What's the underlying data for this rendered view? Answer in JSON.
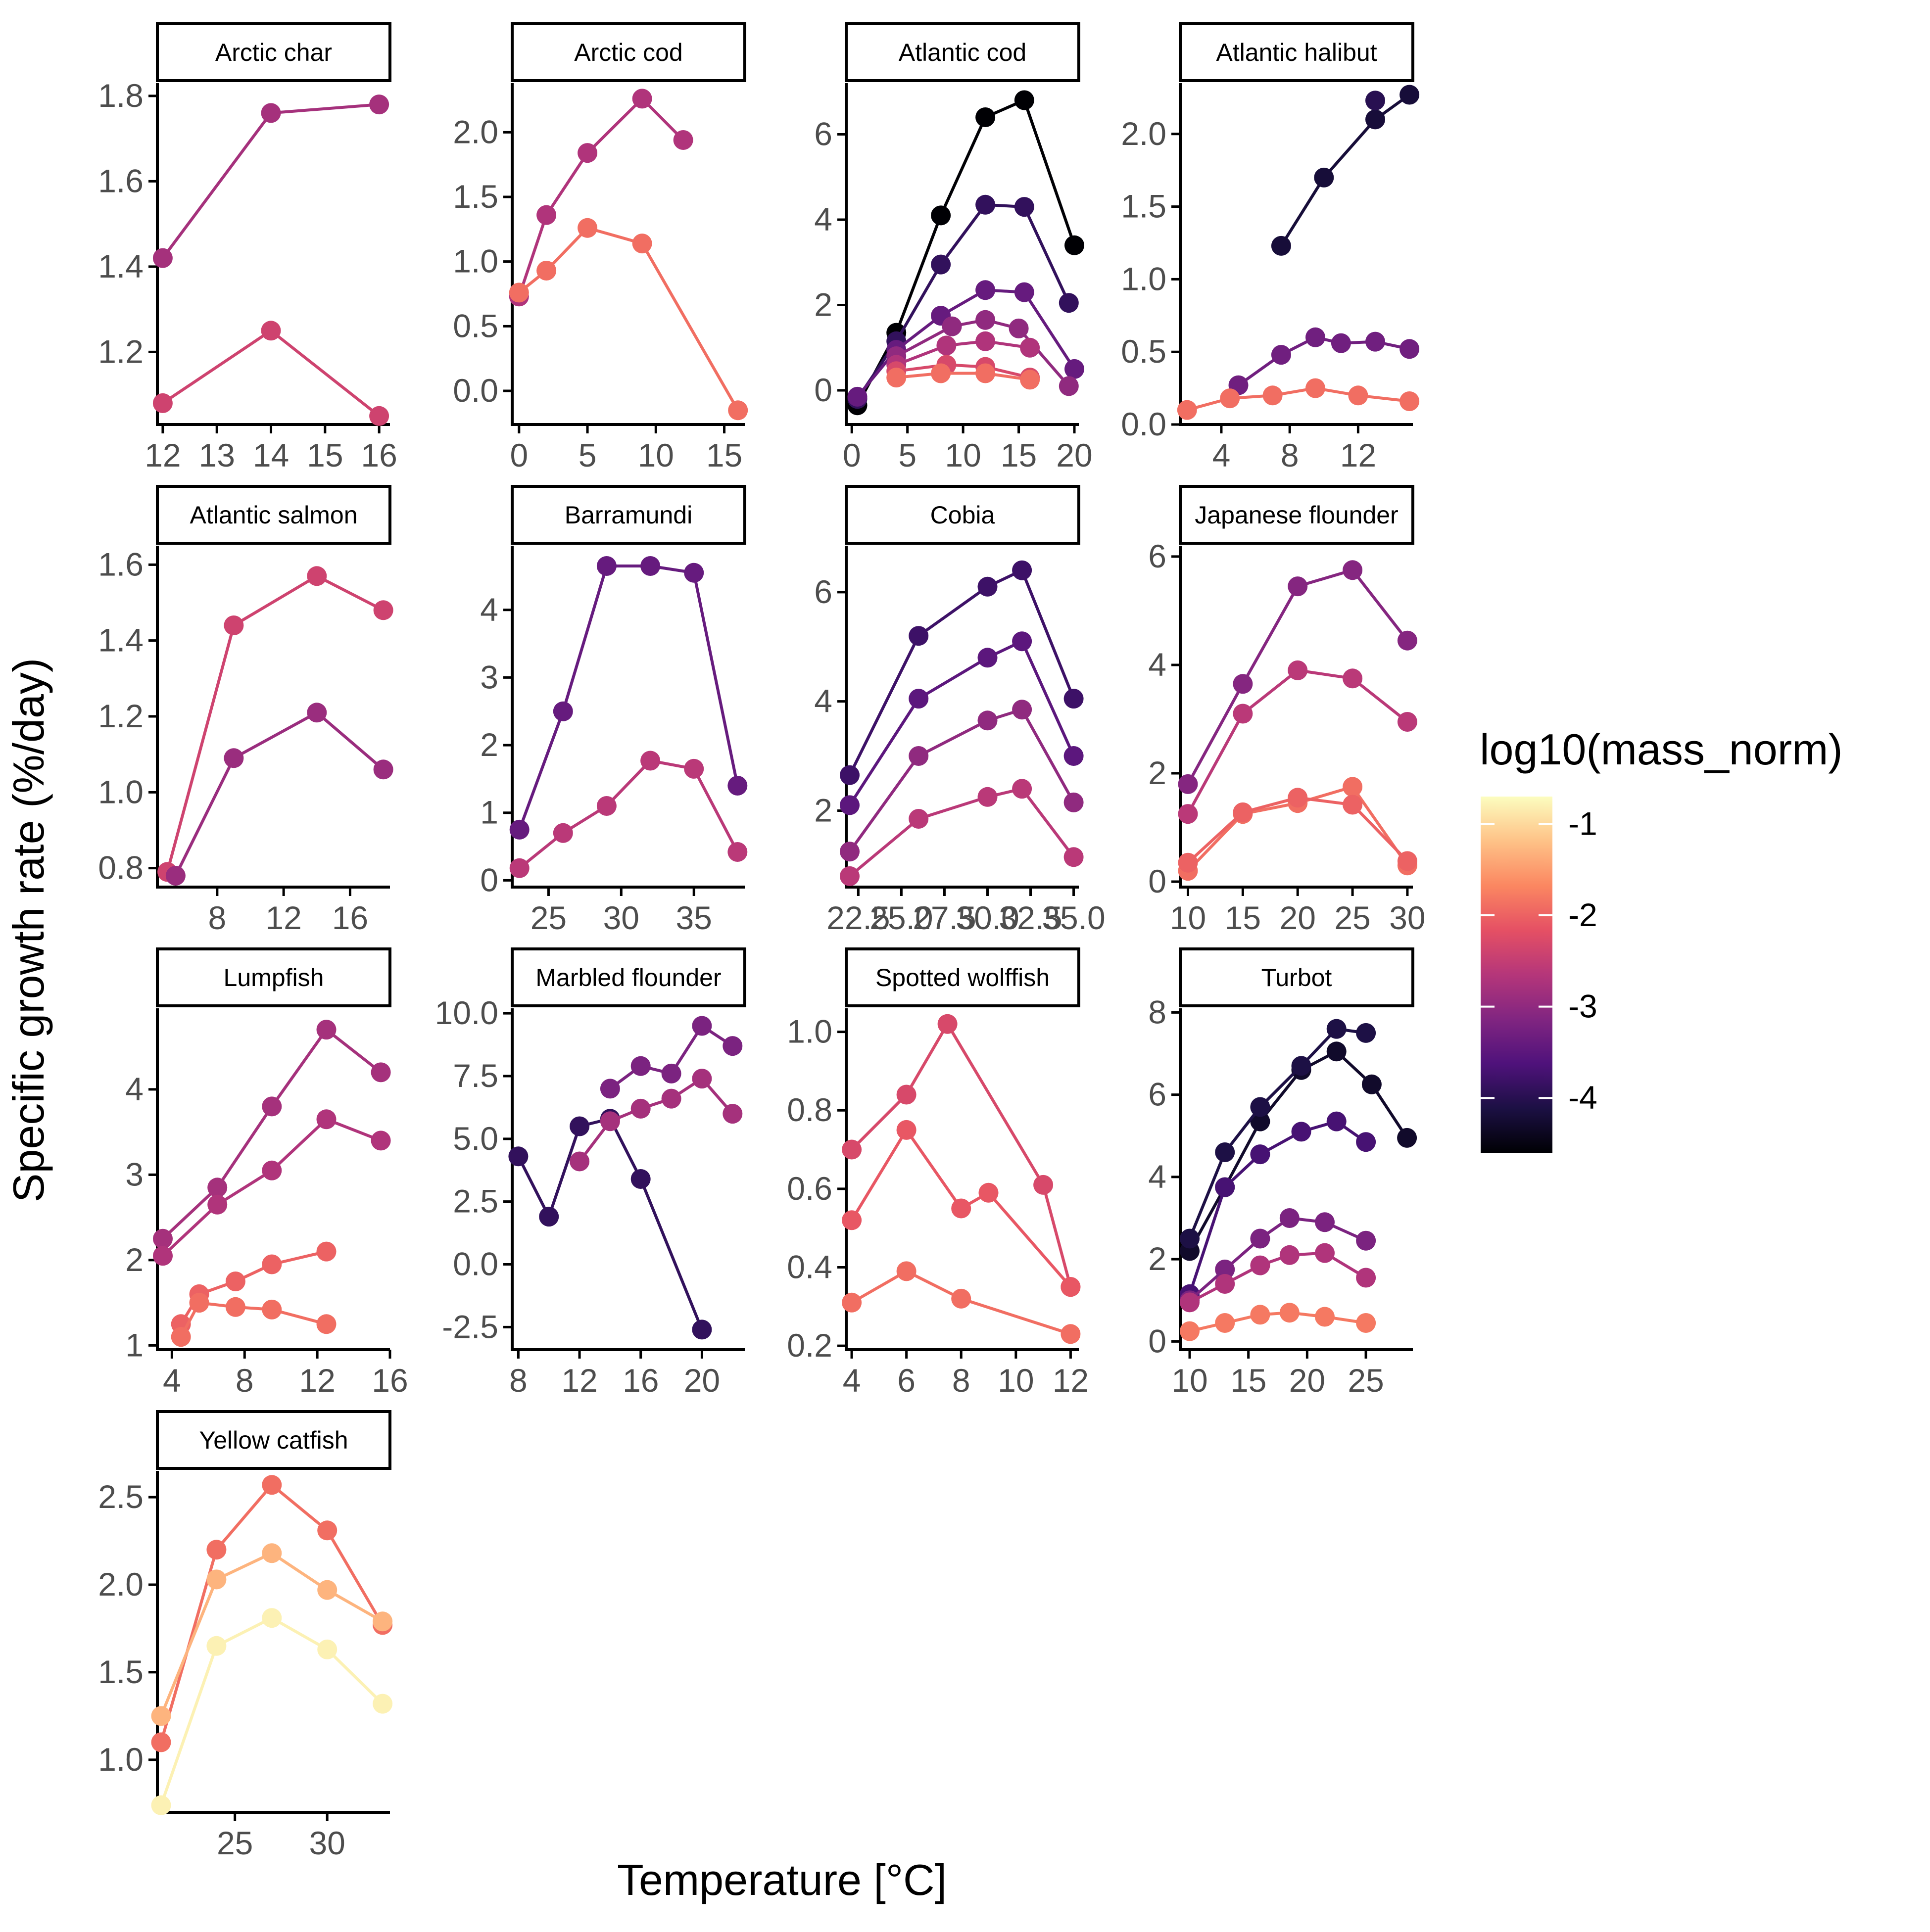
{
  "figure": {
    "xlabel": "Temperature [°C]",
    "ylabel": "Specific growth rate (%/day)",
    "legend": {
      "title": "log10(mass_norm)",
      "ticks": [
        -1,
        -2,
        -3,
        -4
      ],
      "range": [
        -4.6,
        -0.7
      ],
      "colormap": [
        "#000004",
        "#1c1044",
        "#4f127b",
        "#812581",
        "#b5367a",
        "#e55064",
        "#fb8761",
        "#fec287",
        "#fcfdbf"
      ]
    }
  },
  "chart_data": [
    {
      "type": "line",
      "title": "Arctic char",
      "xlim": [
        11.9,
        16.2
      ],
      "ylim": [
        1.03,
        1.83
      ],
      "xticks": [
        12,
        13,
        14,
        15,
        16
      ],
      "yticks": [
        1.2,
        1.4,
        1.6,
        1.8
      ],
      "series": [
        {
          "logmass": -2.8,
          "x": [
            12,
            14,
            16
          ],
          "y": [
            1.42,
            1.76,
            1.78
          ]
        },
        {
          "logmass": -2.4,
          "x": [
            12,
            14,
            16
          ],
          "y": [
            1.08,
            1.25,
            1.05
          ]
        }
      ]
    },
    {
      "type": "line",
      "title": "Arctic cod",
      "xlim": [
        -0.5,
        16.5
      ],
      "ylim": [
        -0.26,
        2.38
      ],
      "xticks": [
        0,
        5,
        10,
        15
      ],
      "yticks": [
        0.0,
        0.5,
        1.0,
        1.5,
        2.0
      ],
      "series": [
        {
          "logmass": -2.7,
          "x": [
            0,
            2,
            5,
            9,
            12
          ],
          "y": [
            0.73,
            1.36,
            1.84,
            2.26,
            1.94
          ]
        },
        {
          "logmass": -1.9,
          "x": [
            0,
            2,
            5,
            9,
            16
          ],
          "y": [
            0.76,
            0.93,
            1.26,
            1.14,
            -0.15
          ]
        }
      ]
    },
    {
      "type": "line",
      "title": "Atlantic cod",
      "xlim": [
        -0.5,
        20.4
      ],
      "ylim": [
        -0.8,
        7.2
      ],
      "xticks": [
        0,
        5,
        10,
        15,
        20
      ],
      "yticks": [
        0,
        2,
        4,
        6
      ],
      "series": [
        {
          "logmass": -4.6,
          "x": [
            0.5,
            4,
            8,
            12,
            15.5,
            20
          ],
          "y": [
            -0.35,
            1.35,
            4.1,
            6.4,
            6.8,
            3.4
          ]
        },
        {
          "logmass": -3.9,
          "x": [
            0.5,
            4,
            8,
            12,
            15.5,
            19.5
          ],
          "y": [
            -0.2,
            1.15,
            2.95,
            4.35,
            4.3,
            2.05
          ]
        },
        {
          "logmass": -3.4,
          "x": [
            0.5,
            4,
            8,
            12,
            15.5,
            20
          ],
          "y": [
            -0.15,
            0.95,
            1.75,
            2.35,
            2.3,
            0.5
          ]
        },
        {
          "logmass": -3.0,
          "x": [
            4,
            9,
            12,
            15,
            19.5
          ],
          "y": [
            0.8,
            1.5,
            1.65,
            1.45,
            0.1
          ]
        },
        {
          "logmass": -2.7,
          "x": [
            4,
            8.5,
            12,
            16
          ],
          "y": [
            0.6,
            1.05,
            1.15,
            1.0
          ]
        },
        {
          "logmass": -2.3,
          "x": [
            4,
            8.5,
            12,
            16
          ],
          "y": [
            0.45,
            0.6,
            0.55,
            0.3
          ]
        },
        {
          "logmass": -1.9,
          "x": [
            4,
            8,
            12,
            16
          ],
          "y": [
            0.3,
            0.4,
            0.4,
            0.25
          ]
        }
      ]
    },
    {
      "type": "line",
      "title": "Atlantic halibut",
      "xlim": [
        1.6,
        15.2
      ],
      "ylim": [
        0.0,
        2.35
      ],
      "xticks": [
        4,
        8,
        12
      ],
      "yticks": [
        0.0,
        0.5,
        1.0,
        1.5,
        2.0
      ],
      "series": [
        {
          "logmass": -4.2,
          "x": [
            7.5,
            10,
            13,
            15
          ],
          "y": [
            1.23,
            1.7,
            2.1,
            2.27
          ]
        },
        {
          "logmass": -4.0,
          "x": [
            13
          ],
          "y": [
            2.23
          ]
        },
        {
          "logmass": -3.3,
          "x": [
            5,
            7.5,
            9.5,
            11,
            13,
            15
          ],
          "y": [
            0.27,
            0.48,
            0.6,
            0.56,
            0.57,
            0.52
          ]
        },
        {
          "logmass": -1.9,
          "x": [
            2,
            4.5,
            7,
            9.5,
            12,
            15
          ],
          "y": [
            0.1,
            0.18,
            0.2,
            0.25,
            0.2,
            0.16
          ]
        }
      ]
    },
    {
      "type": "line",
      "title": "Atlantic salmon",
      "xlim": [
        4.4,
        18.4
      ],
      "ylim": [
        0.75,
        1.65
      ],
      "xticks": [
        8,
        12,
        16
      ],
      "yticks": [
        0.8,
        1.0,
        1.2,
        1.4,
        1.6
      ],
      "series": [
        {
          "logmass": -2.4,
          "x": [
            5,
            9,
            14,
            18
          ],
          "y": [
            0.79,
            1.44,
            1.57,
            1.48
          ]
        },
        {
          "logmass": -2.9,
          "x": [
            5.5,
            9,
            14,
            18
          ],
          "y": [
            0.78,
            1.09,
            1.21,
            1.06
          ]
        }
      ]
    },
    {
      "type": "line",
      "title": "Barramundi",
      "xlim": [
        22.5,
        38.5
      ],
      "ylim": [
        -0.1,
        4.95
      ],
      "xticks": [
        25,
        30,
        35
      ],
      "yticks": [
        0,
        1,
        2,
        3,
        4
      ],
      "series": [
        {
          "logmass": -3.4,
          "x": [
            23,
            26,
            29,
            32,
            35,
            38
          ],
          "y": [
            0.75,
            2.5,
            4.65,
            4.65,
            4.55,
            1.4
          ]
        },
        {
          "logmass": -2.6,
          "x": [
            23,
            26,
            29,
            32,
            35,
            38
          ],
          "y": [
            0.18,
            0.7,
            1.1,
            1.77,
            1.65,
            0.42
          ]
        }
      ]
    },
    {
      "type": "line",
      "title": "Cobia",
      "xlim": [
        21.8,
        35.3
      ],
      "ylim": [
        0.6,
        6.85
      ],
      "xticks": [
        22.5,
        25.0,
        27.5,
        30.0,
        32.5,
        35.0
      ],
      "xtick_labels": [
        "22.5",
        "25.0",
        "27.5",
        "30.0",
        "32.5",
        "35.0"
      ],
      "yticks": [
        2,
        4,
        6
      ],
      "series": [
        {
          "logmass": -3.8,
          "x": [
            22,
            26,
            30,
            32,
            35
          ],
          "y": [
            2.65,
            5.2,
            6.1,
            6.4,
            4.05
          ]
        },
        {
          "logmass": -3.5,
          "x": [
            22,
            26,
            30,
            32,
            35
          ],
          "y": [
            2.1,
            4.05,
            4.8,
            5.1,
            3.0
          ]
        },
        {
          "logmass": -3.0,
          "x": [
            22,
            26,
            30,
            32,
            35
          ],
          "y": [
            1.25,
            3.0,
            3.65,
            3.85,
            2.15
          ]
        },
        {
          "logmass": -2.6,
          "x": [
            22,
            26,
            30,
            32,
            35
          ],
          "y": [
            0.8,
            1.85,
            2.25,
            2.4,
            1.15
          ]
        }
      ]
    },
    {
      "type": "line",
      "title": "Japanese flounder",
      "xlim": [
        9.3,
        30.5
      ],
      "ylim": [
        -0.1,
        6.2
      ],
      "xticks": [
        10,
        15,
        20,
        25,
        30
      ],
      "yticks": [
        0,
        2,
        4,
        6
      ],
      "series": [
        {
          "logmass": -3.1,
          "x": [
            10,
            15,
            20,
            25,
            30
          ],
          "y": [
            1.8,
            3.65,
            5.45,
            5.75,
            4.45
          ]
        },
        {
          "logmass": -2.6,
          "x": [
            10,
            15,
            20,
            25,
            30
          ],
          "y": [
            1.25,
            3.1,
            3.9,
            3.75,
            2.95
          ]
        },
        {
          "logmass": -1.9,
          "x": [
            10,
            15,
            20,
            25,
            30
          ],
          "y": [
            0.2,
            1.25,
            1.45,
            1.75,
            0.3
          ]
        },
        {
          "logmass": -2.0,
          "x": [
            10,
            15,
            20,
            25,
            30
          ],
          "y": [
            0.35,
            1.28,
            1.55,
            1.42,
            0.38
          ]
        }
      ]
    },
    {
      "type": "line",
      "title": "Lumpfish",
      "xlim": [
        3.2,
        16.0
      ],
      "ylim": [
        0.95,
        4.95
      ],
      "xticks": [
        4,
        8,
        12,
        16
      ],
      "yticks": [
        1,
        2,
        3,
        4
      ],
      "series": [
        {
          "logmass": -2.8,
          "x": [
            3.5,
            6.5,
            9.5,
            12.5,
            15.5
          ],
          "y": [
            2.25,
            2.85,
            3.8,
            4.7,
            4.2
          ]
        },
        {
          "logmass": -2.7,
          "x": [
            3.5,
            6.5,
            9.5,
            12.5,
            15.5
          ],
          "y": [
            2.05,
            2.65,
            3.05,
            3.65,
            3.4
          ]
        },
        {
          "logmass": -2.0,
          "x": [
            4.5,
            5.5,
            7.5,
            9.5,
            12.5
          ],
          "y": [
            1.25,
            1.6,
            1.75,
            1.95,
            2.1
          ]
        },
        {
          "logmass": -1.9,
          "x": [
            4.5,
            5.5,
            7.5,
            9.5,
            12.5
          ],
          "y": [
            1.1,
            1.5,
            1.45,
            1.42,
            1.25
          ]
        }
      ]
    },
    {
      "type": "line",
      "title": "Marbled flounder",
      "xlim": [
        7.6,
        22.8
      ],
      "ylim": [
        -3.4,
        10.2
      ],
      "xticks": [
        8,
        12,
        16,
        20
      ],
      "yticks": [
        -2.5,
        0.0,
        2.5,
        5.0,
        7.5,
        10.0
      ],
      "series": [
        {
          "logmass": -3.9,
          "x": [
            8,
            10,
            12,
            14,
            16,
            20
          ],
          "y": [
            4.3,
            1.9,
            5.5,
            5.8,
            3.4,
            -2.6
          ]
        },
        {
          "logmass": -3.2,
          "x": [
            14,
            16,
            18,
            20,
            22
          ],
          "y": [
            7.0,
            7.9,
            7.6,
            9.5,
            8.7
          ]
        },
        {
          "logmass": -2.8,
          "x": [
            12,
            14,
            16,
            18,
            20,
            22
          ],
          "y": [
            4.1,
            5.7,
            6.2,
            6.6,
            7.4,
            6.0
          ]
        }
      ]
    },
    {
      "type": "line",
      "title": "Spotted wolffish",
      "xlim": [
        3.8,
        12.3
      ],
      "ylim": [
        0.19,
        1.06
      ],
      "xticks": [
        4,
        6,
        8,
        10,
        12
      ],
      "yticks": [
        0.2,
        0.4,
        0.6,
        0.8,
        1.0
      ],
      "series": [
        {
          "logmass": -2.3,
          "x": [
            4,
            6,
            7.5,
            11,
            12
          ],
          "y": [
            0.7,
            0.84,
            1.02,
            0.61,
            0.35
          ]
        },
        {
          "logmass": -2.1,
          "x": [
            4,
            6,
            8,
            9,
            12
          ],
          "y": [
            0.52,
            0.75,
            0.55,
            0.59,
            0.35
          ]
        },
        {
          "logmass": -1.9,
          "x": [
            4,
            6,
            8,
            12
          ],
          "y": [
            0.31,
            0.39,
            0.32,
            0.23
          ]
        }
      ]
    },
    {
      "type": "line",
      "title": "Turbot",
      "xlim": [
        9.2,
        29.0
      ],
      "ylim": [
        -0.2,
        8.1
      ],
      "xticks": [
        10,
        15,
        20,
        25
      ],
      "yticks": [
        0,
        2,
        4,
        6,
        8
      ],
      "series": [
        {
          "logmass": -4.3,
          "x": [
            10,
            13,
            16,
            19.5,
            22.5,
            25.5,
            28.5
          ],
          "y": [
            2.2,
            3.75,
            5.35,
            6.6,
            7.05,
            6.25,
            4.95
          ]
        },
        {
          "logmass": -4.1,
          "x": [
            10,
            13,
            16,
            19.5,
            22.5,
            25
          ],
          "y": [
            2.5,
            4.6,
            5.7,
            6.7,
            7.6,
            7.5
          ]
        },
        {
          "logmass": -3.7,
          "x": [
            10,
            13,
            16,
            19.5,
            22.5,
            25
          ],
          "y": [
            1.15,
            3.75,
            4.55,
            5.1,
            5.35,
            4.85
          ]
        },
        {
          "logmass": -3.2,
          "x": [
            10,
            13,
            16,
            18.5,
            21.5,
            25
          ],
          "y": [
            1.0,
            1.75,
            2.5,
            3.0,
            2.9,
            2.45
          ]
        },
        {
          "logmass": -2.7,
          "x": [
            10,
            13,
            16,
            18.5,
            21.5,
            25
          ],
          "y": [
            0.95,
            1.4,
            1.85,
            2.1,
            2.15,
            1.55
          ]
        },
        {
          "logmass": -1.8,
          "x": [
            10,
            13,
            16,
            18.5,
            21.5,
            25
          ],
          "y": [
            0.25,
            0.45,
            0.65,
            0.7,
            0.6,
            0.45
          ]
        }
      ]
    },
    {
      "type": "line",
      "title": "Yellow catfish",
      "xlim": [
        20.8,
        33.4
      ],
      "ylim": [
        0.7,
        2.65
      ],
      "xticks": [
        25,
        30
      ],
      "yticks": [
        1.0,
        1.5,
        2.0,
        2.5
      ],
      "series": [
        {
          "logmass": -1.9,
          "x": [
            21,
            24,
            27,
            30,
            33
          ],
          "y": [
            1.1,
            2.2,
            2.57,
            2.31,
            1.77
          ]
        },
        {
          "logmass": -1.3,
          "x": [
            21,
            24,
            27,
            30,
            33
          ],
          "y": [
            1.25,
            2.03,
            2.18,
            1.97,
            1.79
          ]
        },
        {
          "logmass": -0.8,
          "x": [
            21,
            24,
            27,
            30,
            33
          ],
          "y": [
            0.74,
            1.65,
            1.81,
            1.63,
            1.32
          ]
        }
      ]
    }
  ]
}
